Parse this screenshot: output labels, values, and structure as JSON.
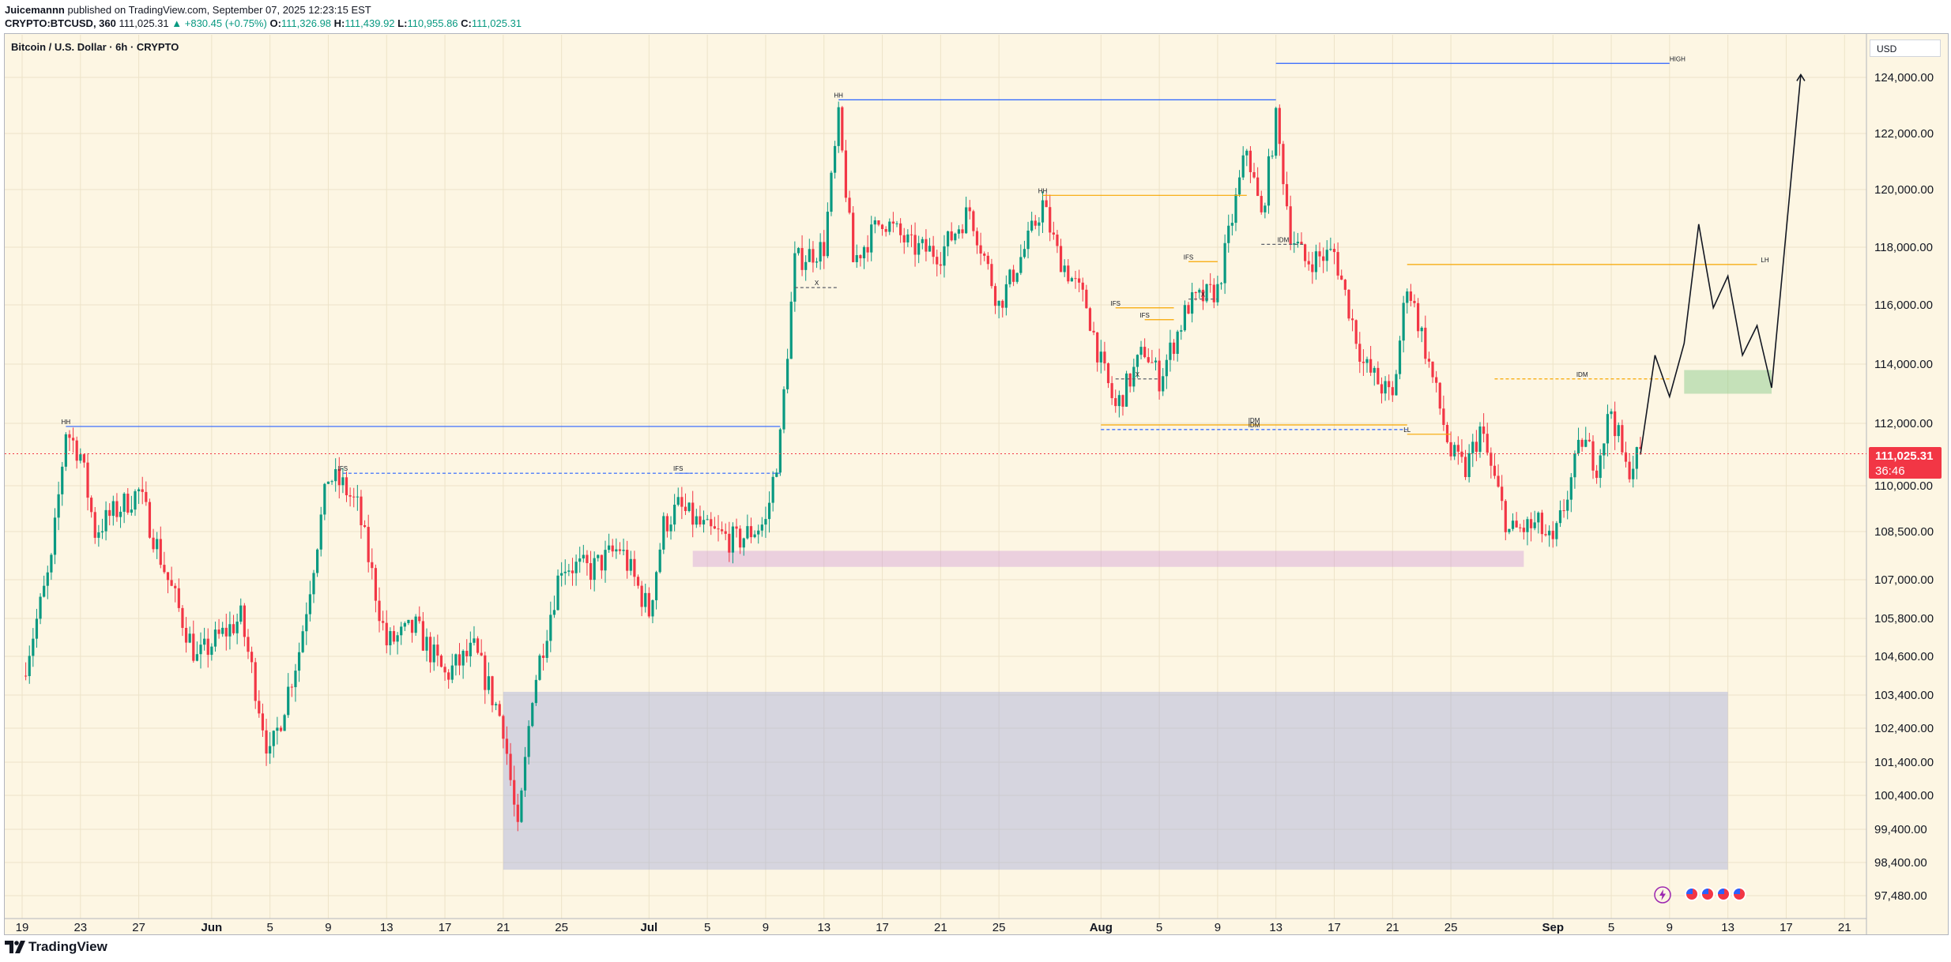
{
  "header": {
    "author": "Juicemannn",
    "published": "published on TradingView.com, September 07, 2025 12:23:15 EST",
    "symbol": "CRYPTO:BTCUSD, 360",
    "last": "111,025.31",
    "change": "▲ +830.45 (+0.75%)",
    "open_label": "O:",
    "open": "111,326.98",
    "high_label": "H:",
    "high": "111,439.92",
    "low_label": "L:",
    "low": "110,955.86",
    "close_label": "C:",
    "close": "111,025.31"
  },
  "chart_title": "Bitcoin / U.S. Dollar · 6h · CRYPTO",
  "currency": "USD",
  "price_tag": {
    "value": "111,025.31",
    "countdown": "36:46"
  },
  "footer": {
    "brand": "TradingView"
  },
  "colors": {
    "background": "#fdf6e3",
    "up": "#089981",
    "down": "#f23645",
    "blue_line": "#2962ff",
    "orange_line": "#f7a600",
    "demand_zone": "#9fa8da",
    "pink_zone": "#ce93d8",
    "green_zone": "#81c784"
  },
  "chart_data": {
    "type": "candlestick",
    "title": "Bitcoin / U.S. Dollar · 6h · CRYPTO",
    "ylim": [
      97000,
      125500
    ],
    "y_ticks": [
      "124,000.00",
      "122,000.00",
      "120,000.00",
      "118,000.00",
      "116,000.00",
      "114,000.00",
      "112,000.00",
      "110,000.00",
      "108,500.00",
      "107,000.00",
      "105,800.00",
      "104,600.00",
      "103,400.00",
      "102,400.00",
      "101,400.00",
      "100,400.00",
      "99,400.00",
      "98,400.00",
      "97,480.00"
    ],
    "x_ticks": [
      "19",
      "23",
      "27",
      "Jun",
      "5",
      "9",
      "13",
      "17",
      "21",
      "25",
      "Jul",
      "5",
      "9",
      "13",
      "17",
      "21",
      "25",
      "Aug",
      "5",
      "9",
      "13",
      "17",
      "21",
      "25",
      "Sep",
      "5",
      "9",
      "13",
      "17",
      "21"
    ],
    "price_path": [
      [
        "May 19",
        104000
      ],
      [
        "May 21",
        107500
      ],
      [
        "May 22",
        111800
      ],
      [
        "May 23",
        111000
      ],
      [
        "May 24",
        108500
      ],
      [
        "May 25",
        109000
      ],
      [
        "May 27",
        109800
      ],
      [
        "May 29",
        107000
      ],
      [
        "May 31",
        104500
      ],
      [
        "Jun 1",
        105000
      ],
      [
        "Jun 3",
        105800
      ],
      [
        "Jun 5",
        101500
      ],
      [
        "Jun 7",
        104800
      ],
      [
        "Jun 9",
        110300
      ],
      [
        "Jun 10",
        110000
      ],
      [
        "Jun 11",
        109300
      ],
      [
        "Jun 13",
        105000
      ],
      [
        "Jun 15",
        105500
      ],
      [
        "Jun 17",
        104000
      ],
      [
        "Jun 19",
        104800
      ],
      [
        "Jun 21",
        102500
      ],
      [
        "Jun 22",
        99200
      ],
      [
        "Jun 23",
        103500
      ],
      [
        "Jun 25",
        107500
      ],
      [
        "Jun 27",
        107300
      ],
      [
        "Jun 29",
        108000
      ],
      [
        "Jul 1",
        106000
      ],
      [
        "Jul 2",
        108700
      ],
      [
        "Jul 3",
        109300
      ],
      [
        "Jul 5",
        108500
      ],
      [
        "Jul 7",
        108200
      ],
      [
        "Jul 9",
        108800
      ],
      [
        "Jul 10",
        111500
      ],
      [
        "Jul 11",
        117500
      ],
      [
        "Jul 13",
        118000
      ],
      [
        "Jul 14",
        122500
      ],
      [
        "Jul 15",
        117500
      ],
      [
        "Jul 17",
        119000
      ],
      [
        "Jul 19",
        118000
      ],
      [
        "Jul 21",
        117800
      ],
      [
        "Jul 23",
        119300
      ],
      [
        "Jul 25",
        116000
      ],
      [
        "Jul 27",
        118200
      ],
      [
        "Jul 28",
        119500
      ],
      [
        "Jul 29",
        117800
      ],
      [
        "Jul 31",
        116000
      ],
      [
        "Aug 1",
        114000
      ],
      [
        "Aug 2",
        112500
      ],
      [
        "Aug 4",
        114500
      ],
      [
        "Aug 5",
        113500
      ],
      [
        "Aug 7",
        116000
      ],
      [
        "Aug 9",
        116500
      ],
      [
        "Aug 11",
        121500
      ],
      [
        "Aug 12",
        119000
      ],
      [
        "Aug 13",
        122500
      ],
      [
        "Aug 14",
        118500
      ],
      [
        "Aug 15",
        117500
      ],
      [
        "Aug 17",
        117800
      ],
      [
        "Aug 19",
        114000
      ],
      [
        "Aug 21",
        112800
      ],
      [
        "Aug 22",
        116800
      ],
      [
        "Aug 23",
        115000
      ],
      [
        "Aug 25",
        111000
      ],
      [
        "Aug 26",
        110500
      ],
      [
        "Aug 27",
        111800
      ],
      [
        "Aug 29",
        108500
      ],
      [
        "Aug 31",
        108700
      ],
      [
        "Sep 1",
        108000
      ],
      [
        "Sep 3",
        111500
      ],
      [
        "Sep 4",
        110700
      ],
      [
        "Sep 5",
        112500
      ],
      [
        "Sep 6",
        110500
      ],
      [
        "Sep 7",
        111025.31
      ]
    ],
    "levels": [
      {
        "label": "HH",
        "price": 111900,
        "from": "May 22",
        "to": "Jul 10",
        "color": "blue"
      },
      {
        "label": "IFS",
        "price": 110400,
        "from": "Jun 10",
        "to": "Jul 4",
        "color": "blue-dash"
      },
      {
        "label": "IFS",
        "price": 110400,
        "from": "Jul 3",
        "to": "Jul 10",
        "color": "blue-dash"
      },
      {
        "label": "HH",
        "price": 123200,
        "from": "Jul 14",
        "to": "Aug 13",
        "color": "blue"
      },
      {
        "label": "HIGH",
        "price": 124500,
        "from": "Aug 13",
        "to": "Sep 9",
        "color": "blue"
      },
      {
        "label": "HH",
        "price": 119800,
        "from": "Jul 28",
        "to": "Aug 11",
        "color": "orange"
      },
      {
        "label": "X",
        "price": 116600,
        "from": "Jul 11",
        "to": "Jul 14",
        "color": "gray-dash"
      },
      {
        "label": "IFS",
        "price": 115900,
        "from": "Aug 2",
        "to": "Aug 6",
        "color": "orange"
      },
      {
        "label": "IFS",
        "price": 115500,
        "from": "Aug 4",
        "to": "Aug 6",
        "color": "orange"
      },
      {
        "label": "IFS",
        "price": 117500,
        "from": "Aug 7",
        "to": "Aug 9",
        "color": "orange"
      },
      {
        "label": "X",
        "price": 113500,
        "from": "Aug 2",
        "to": "Aug 5",
        "color": "gray-dash"
      },
      {
        "label": "X",
        "price": 116200,
        "from": "Aug 7",
        "to": "Aug 9",
        "color": "gray-dash"
      },
      {
        "label": "IDM",
        "price": 118100,
        "from": "Aug 12",
        "to": "Aug 15",
        "color": "gray-dash"
      },
      {
        "label": "IDM",
        "price": 111950,
        "from": "Aug 1",
        "to": "Aug 22",
        "color": "orange"
      },
      {
        "label": "IDM",
        "price": 111800,
        "from": "Aug 1",
        "to": "Aug 22",
        "color": "blue-dash"
      },
      {
        "label": "LL",
        "price": 111650,
        "from": "Aug 22",
        "to": "Aug 25",
        "color": "orange"
      },
      {
        "label": "LH",
        "price": 117400,
        "from": "Aug 22",
        "to": "Sep 15",
        "color": "orange"
      },
      {
        "label": "IDM",
        "price": 113500,
        "from": "Aug 28",
        "to": "Sep 9",
        "color": "orange-dash"
      }
    ],
    "zones": [
      {
        "name": "demand",
        "from": "Jun 21",
        "to": "Sep 13",
        "low": 98200,
        "high": 103500,
        "color": "blue"
      },
      {
        "name": "support",
        "from": "Jul 4",
        "to": "Aug 30",
        "low": 107400,
        "high": 107900,
        "color": "pink"
      },
      {
        "name": "target-entry",
        "from": "Sep 10",
        "to": "Sep 16",
        "low": 113000,
        "high": 113800,
        "color": "green"
      }
    ],
    "projection": [
      [
        "Sep 7",
        111000
      ],
      [
        "Sep 8",
        114300
      ],
      [
        "Sep 9",
        112900
      ],
      [
        "Sep 10",
        114700
      ],
      [
        "Sep 11",
        118800
      ],
      [
        "Sep 12",
        115900
      ],
      [
        "Sep 13",
        117000
      ],
      [
        "Sep 14",
        114300
      ],
      [
        "Sep 15",
        115300
      ],
      [
        "Sep 16",
        113200
      ],
      [
        "Sep 18",
        124100
      ]
    ]
  }
}
